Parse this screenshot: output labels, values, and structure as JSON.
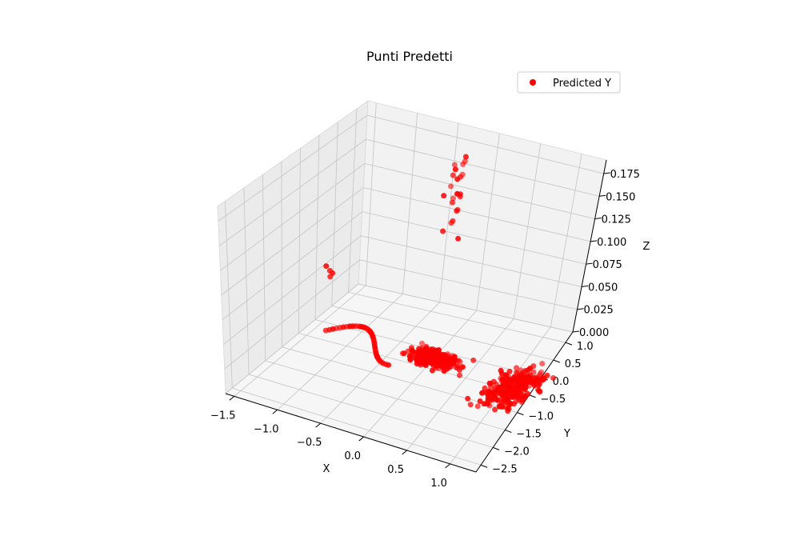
{
  "chart_data": {
    "type": "scatter",
    "projection": "3d",
    "title": "Punti Predetti",
    "xlabel": "X",
    "ylabel": "Y",
    "zlabel": "Z",
    "xlim": [
      -1.6,
      1.3
    ],
    "ylim": [
      -2.7,
      1.3
    ],
    "zlim": [
      0.0,
      0.19
    ],
    "x_ticks": [
      "−1.5",
      "−1.0",
      "−0.5",
      "0.0",
      "0.5",
      "1.0"
    ],
    "y_ticks": [
      "−2.5",
      "−2.0",
      "−1.5",
      "−1.0",
      "−0.5",
      "0.0",
      "0.5",
      "1.0"
    ],
    "z_ticks": [
      "0.000",
      "0.025",
      "0.050",
      "0.075",
      "0.100",
      "0.125",
      "0.150",
      "0.175"
    ],
    "grid": true,
    "legend_position": "top-right",
    "series": [
      {
        "name": "Predicted Y",
        "color": "#ff0000",
        "clusters": [
          {
            "description": "dense cluster near origin",
            "x_range": [
              -0.6,
              0.2
            ],
            "y_range": [
              -0.4,
              0.3
            ],
            "z": 0.0
          },
          {
            "description": "dense cluster at positive x",
            "x_range": [
              0.4,
              1.1
            ],
            "y_range": [
              -1.2,
              0.8
            ],
            "z": 0.0
          },
          {
            "description": "trailing arc toward negative x",
            "x_range": [
              -1.4,
              -0.5
            ],
            "y_range": [
              -0.6,
              0.2
            ],
            "z": 0.0
          },
          {
            "description": "elevated points",
            "x_range": [
              -0.5,
              -0.2
            ],
            "y_range": [
              0.6,
              1.0
            ],
            "z_range": [
              0.09,
              0.18
            ]
          },
          {
            "description": "isolated elevated points",
            "x_range": [
              -1.5,
              -1.3
            ],
            "y_range": [
              -0.3,
              0.1
            ],
            "z_range": [
              0.04,
              0.07
            ]
          }
        ]
      }
    ]
  }
}
